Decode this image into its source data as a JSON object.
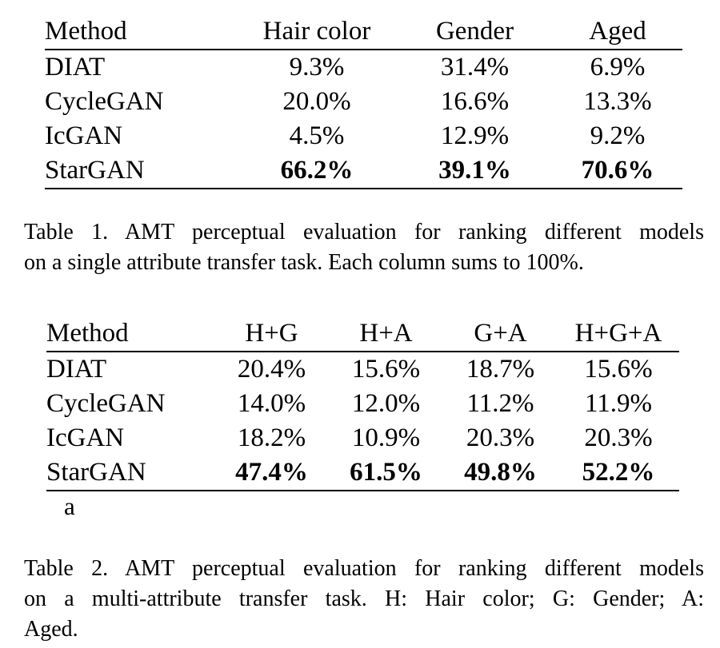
{
  "table1": {
    "headers": [
      "Method",
      "Hair color",
      "Gender",
      "Aged"
    ],
    "rows": [
      {
        "method": "DIAT",
        "values": [
          "9.3%",
          "31.4%",
          "6.9%"
        ],
        "bold": false
      },
      {
        "method": "CycleGAN",
        "values": [
          "20.0%",
          "16.6%",
          "13.3%"
        ],
        "bold": false
      },
      {
        "method": "IcGAN",
        "values": [
          "4.5%",
          "12.9%",
          "9.2%"
        ],
        "bold": false
      },
      {
        "method": "StarGAN",
        "values": [
          "66.2%",
          "39.1%",
          "70.6%"
        ],
        "bold": true
      }
    ],
    "caption_lines": [
      "Table 1. AMT perceptual evaluation for ranking different models",
      "on a single attribute transfer task. Each column sums to 100%."
    ]
  },
  "table2": {
    "headers": [
      "Method",
      "H+G",
      "H+A",
      "G+A",
      "H+G+A"
    ],
    "rows": [
      {
        "method": "DIAT",
        "values": [
          "20.4%",
          "15.6%",
          "18.7%",
          "15.6%"
        ],
        "bold": false
      },
      {
        "method": "CycleGAN",
        "values": [
          "14.0%",
          "12.0%",
          "11.2%",
          "11.9%"
        ],
        "bold": false
      },
      {
        "method": "IcGAN",
        "values": [
          "18.2%",
          "10.9%",
          "20.3%",
          "20.3%"
        ],
        "bold": false
      },
      {
        "method": "StarGAN",
        "values": [
          "47.4%",
          "61.5%",
          "49.8%",
          "52.2%"
        ],
        "bold": true
      }
    ],
    "note": "a",
    "caption_lines": [
      "Table 2. AMT perceptual evaluation for ranking different models",
      "on a multi-attribute transfer task.  H: Hair color; G: Gender; A:",
      "Aged."
    ]
  }
}
